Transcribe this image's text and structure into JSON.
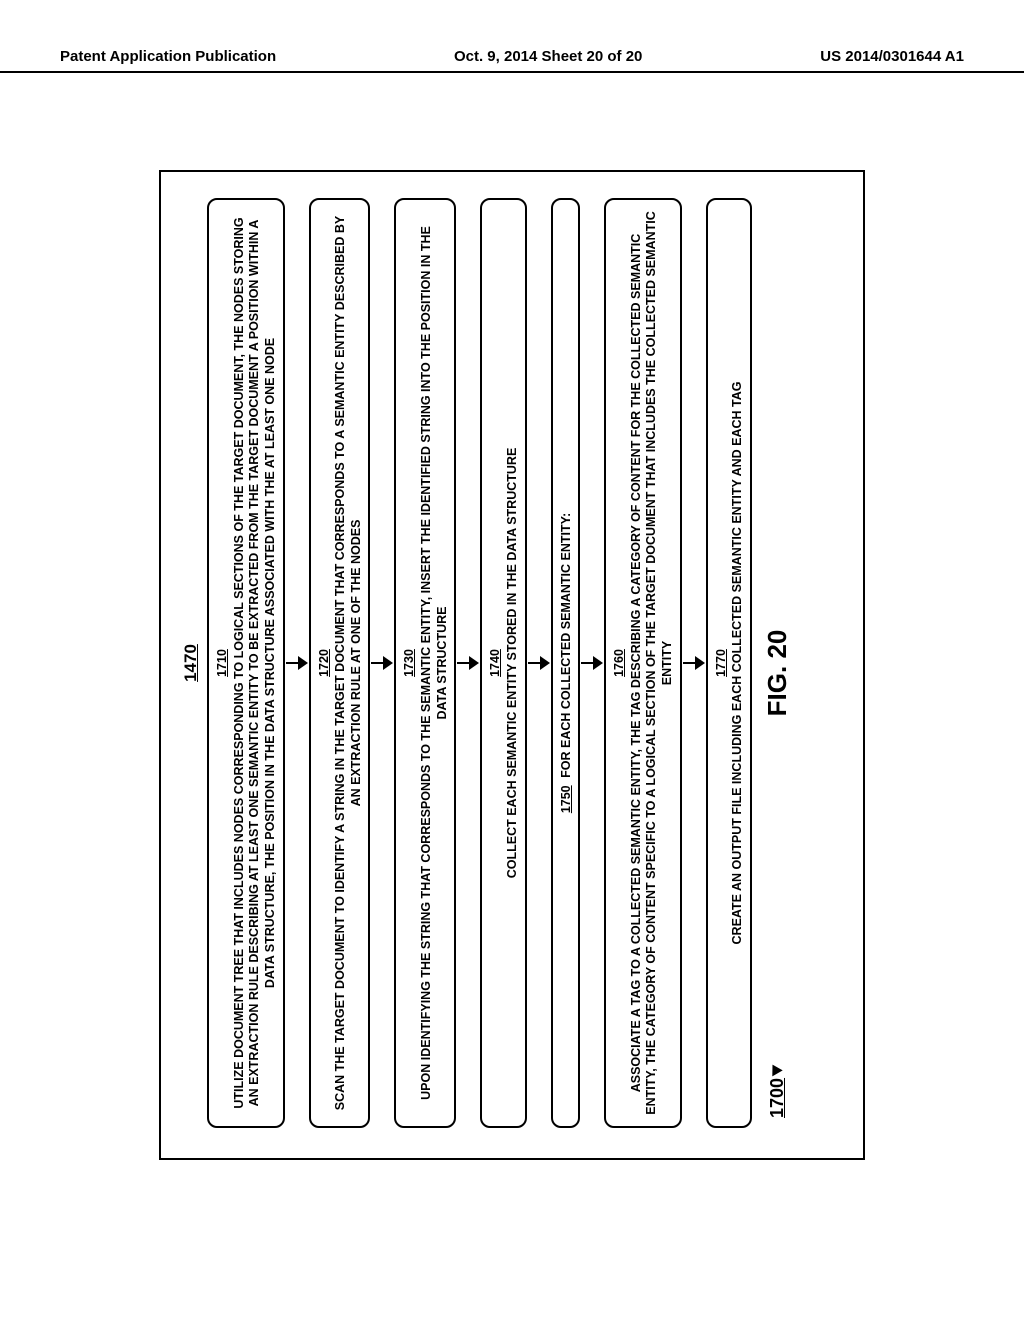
{
  "header": {
    "left": "Patent Application Publication",
    "center": "Oct. 9, 2014  Sheet 20 of 20",
    "right": "US 2014/0301644 A1"
  },
  "figure": {
    "outer_label": "1470",
    "ref_number": "1700",
    "caption": "FIG. 20",
    "steps": [
      {
        "num": "1710",
        "text": "UTILIZE DOCUMENT TREE THAT INCLUDES NODES CORRESPONDING TO LOGICAL SECTIONS OF THE TARGET DOCUMENT, THE NODES STORING AN EXTRACTION RULE DESCRIBING AT LEAST ONE SEMANTIC ENTITY TO BE EXTRACTED FROM THE TARGET DOCUMENT A POSITION WITHIN A DATA STRUCTURE, THE POSITION IN THE DATA STRUCTURE ASSOCIATED WITH THE AT LEAST ONE NODE"
      },
      {
        "num": "1720",
        "text": "SCAN THE TARGET DOCUMENT TO IDENTIFY A STRING IN THE TARGET DOCUMENT THAT CORRESPONDS TO A SEMANTIC ENTITY DESCRIBED BY AN EXTRACTION RULE AT ONE OF THE NODES"
      },
      {
        "num": "1730",
        "text": "UPON IDENTIFYING THE STRING THAT CORRESPONDS TO THE SEMANTIC ENTITY, INSERT THE IDENTIFIED STRING INTO THE POSITION IN THE DATA STRUCTURE"
      },
      {
        "num": "1740",
        "text": "COLLECT EACH SEMANTIC ENTITY STORED IN THE DATA STRUCTURE"
      },
      {
        "num": "1750",
        "text": "FOR EACH COLLECTED SEMANTIC ENTITY:",
        "inline": true
      },
      {
        "num": "1760",
        "text": "ASSOCIATE A TAG TO A COLLECTED SEMANTIC ENTITY, THE TAG DESCRIBING A CATEGORY OF CONTENT FOR THE COLLECTED SEMANTIC ENTITY, THE CATEGORY OF CONTENT SPECIFIC TO A LOGICAL SECTION OF THE TARGET DOCUMENT THAT INCLUDES THE COLLECTED SEMANTIC ENTITY"
      },
      {
        "num": "1770",
        "text": "CREATE AN OUTPUT FILE INCLUDING EACH COLLECTED SEMANTIC ENTITY AND EACH TAG"
      }
    ]
  },
  "colors": {
    "border": "#000000",
    "bg": "#ffffff",
    "text": "#000000"
  }
}
